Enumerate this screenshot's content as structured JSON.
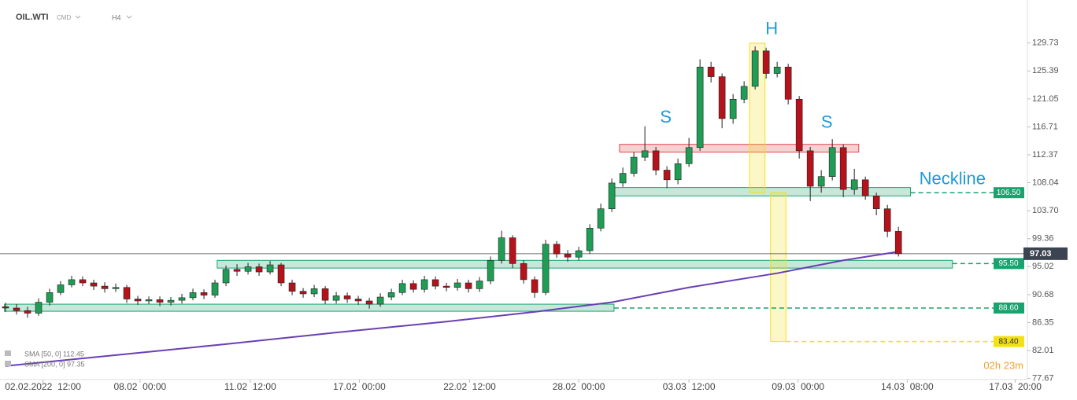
{
  "header": {
    "symbol": "OIL.WTI",
    "market": "CMD",
    "interval": "H4"
  },
  "chart_data": {
    "type": "candlestick",
    "open": [
      88.8,
      88.6,
      88.2,
      87.8,
      89.5,
      91.0,
      92.2,
      93.0,
      92.5,
      92.0,
      91.6,
      91.8,
      90.0,
      89.7,
      89.9,
      89.5,
      89.8,
      90.2,
      91.0,
      90.6,
      92.5,
      94.6,
      94.3,
      95.0,
      94.2,
      95.3,
      92.5,
      91.2,
      90.8,
      91.6,
      89.8,
      90.5,
      90.0,
      89.7,
      89.2,
      90.3,
      91.0,
      92.4,
      91.5,
      93.0,
      92.0,
      91.8,
      92.5,
      91.6,
      92.8,
      96.0,
      99.5,
      95.5,
      93.0,
      91.0,
      98.5,
      97.0,
      96.5,
      97.5,
      101.0,
      104.0,
      108.0,
      109.5,
      112.0,
      113.0,
      110.0,
      108.5,
      111.0,
      113.5,
      126.0,
      124.5,
      118.0,
      121.0,
      123.0,
      128.5,
      125.0,
      126.0,
      121.0,
      113.0,
      107.5,
      109.0,
      113.5,
      107.0,
      108.5,
      106.0,
      104.0,
      100.5
    ],
    "high": [
      89.4,
      89.2,
      88.8,
      90.1,
      91.6,
      92.8,
      93.6,
      93.5,
      93.0,
      92.6,
      92.4,
      92.2,
      90.5,
      90.4,
      90.4,
      90.3,
      90.8,
      91.6,
      91.5,
      93.0,
      95.2,
      95.4,
      95.6,
      95.5,
      95.9,
      95.6,
      93.0,
      91.7,
      92.2,
      92.0,
      91.1,
      91.0,
      90.5,
      90.2,
      90.9,
      91.6,
      93.0,
      92.9,
      93.6,
      93.5,
      92.5,
      93.1,
      93.0,
      93.4,
      96.6,
      100.6,
      99.9,
      96.0,
      93.5,
      99.2,
      99.0,
      97.6,
      98.1,
      101.6,
      104.8,
      108.7,
      110.4,
      112.8,
      116.8,
      113.6,
      110.6,
      111.8,
      115.0,
      127.2,
      126.8,
      125.0,
      121.8,
      123.8,
      129.2,
      129.0,
      126.8,
      126.5,
      121.5,
      113.6,
      110.0,
      114.8,
      114.0,
      110.2,
      109.0,
      106.5,
      104.6,
      101.2
    ],
    "low": [
      88.0,
      87.6,
      87.1,
      87.4,
      89.0,
      90.6,
      91.8,
      92.0,
      91.4,
      91.0,
      91.1,
      89.4,
      89.1,
      89.2,
      88.9,
      89.0,
      89.3,
      89.8,
      90.0,
      90.2,
      92.0,
      93.6,
      93.8,
      93.6,
      93.8,
      92.0,
      90.6,
      90.2,
      90.3,
      89.2,
      89.3,
      89.4,
      89.1,
      88.5,
      88.8,
      89.8,
      90.6,
      91.0,
      91.0,
      91.5,
      91.2,
      91.3,
      91.0,
      91.1,
      92.3,
      95.5,
      94.8,
      92.4,
      90.2,
      90.6,
      96.4,
      95.8,
      96.0,
      97.0,
      100.5,
      103.5,
      107.4,
      109.0,
      111.4,
      109.2,
      107.2,
      107.8,
      110.5,
      113.0,
      123.6,
      116.5,
      117.2,
      120.4,
      122.5,
      124.2,
      124.4,
      120.2,
      111.8,
      105.2,
      106.5,
      108.4,
      105.8,
      106.2,
      105.4,
      103.0,
      99.6,
      96.6
    ],
    "close": [
      88.6,
      88.2,
      87.8,
      89.5,
      91.0,
      92.2,
      93.0,
      92.5,
      92.0,
      91.6,
      91.8,
      90.0,
      89.7,
      89.9,
      89.5,
      89.8,
      90.2,
      91.0,
      90.6,
      92.5,
      94.6,
      94.3,
      95.0,
      94.2,
      95.3,
      92.5,
      91.2,
      90.8,
      91.6,
      89.8,
      90.5,
      90.0,
      89.7,
      89.2,
      90.3,
      91.0,
      92.4,
      91.5,
      93.0,
      92.0,
      91.8,
      92.5,
      91.6,
      92.8,
      96.0,
      99.5,
      95.5,
      93.0,
      91.0,
      98.5,
      97.0,
      96.5,
      97.5,
      101.0,
      104.0,
      108.0,
      109.5,
      112.0,
      113.0,
      110.0,
      108.5,
      111.0,
      113.5,
      126.0,
      124.5,
      118.0,
      121.0,
      123.0,
      128.5,
      125.0,
      126.0,
      121.0,
      113.0,
      107.5,
      109.0,
      113.5,
      107.0,
      108.5,
      106.0,
      104.0,
      100.5,
      97.03
    ],
    "up_color": "#1f9d55",
    "down_color": "#b5121b",
    "sma": {
      "color": "#6a3fb5",
      "x": [
        0,
        10,
        20,
        30,
        40,
        48,
        55,
        62,
        70,
        76,
        81
      ],
      "values": [
        79.6,
        81.3,
        83.0,
        84.8,
        86.5,
        88.0,
        89.5,
        91.8,
        94.0,
        96.0,
        97.35
      ]
    },
    "legend": [
      "SMA [50, 0] 112.45",
      "SMA [200, 0] 97.35"
    ],
    "last_price": 97.03,
    "levels": [
      {
        "value": 106.5,
        "label": "106.50",
        "from": 82.1,
        "color": "#1aa36f"
      },
      {
        "value": 95.5,
        "label": "95.50",
        "from": 85.9,
        "color": "#1aa36f"
      },
      {
        "value": 88.6,
        "label": "88.60",
        "from": 55.2,
        "color": "#1aa36f"
      },
      {
        "value": 83.4,
        "label": "83.40",
        "from": 70.8,
        "color": "#f2e01a"
      }
    ],
    "zones": [
      {
        "x": [
          55.7,
          77.4
        ],
        "y": [
          112.8,
          114.0
        ],
        "color": "#e0474c"
      },
      {
        "x": [
          55.1,
          82.1
        ],
        "y": [
          106.0,
          107.3
        ],
        "color": "#1aa36f"
      },
      {
        "x": [
          19.2,
          85.9
        ],
        "y": [
          94.8,
          96.0
        ],
        "color": "#1aa36f"
      },
      {
        "x": [
          -0.1,
          55.2
        ],
        "y": [
          88.1,
          89.2
        ],
        "color": "#1aa36f"
      },
      {
        "x": [
          67.5,
          68.9
        ],
        "y": [
          106.5,
          129.7
        ],
        "color": "#f2e01a"
      },
      {
        "x": [
          69.4,
          70.8
        ],
        "y": [
          83.4,
          106.5
        ],
        "color": "#f2e01a"
      }
    ],
    "annotations": [
      "H",
      "S",
      "S",
      "Neckline"
    ],
    "timer": "02h 23m",
    "ylim": [
      77.5,
      136.4
    ],
    "yticks": [
      129.73,
      125.39,
      121.05,
      116.71,
      112.37,
      108.04,
      {
        "value": 103.7,
        "label": "103.70"
      },
      99.36,
      95.02,
      90.68,
      86.35,
      82.01,
      77.67
    ],
    "xlim": [
      -0.5,
      92.7
    ],
    "xticks": [
      {
        "value": 3.4,
        "label": "02.02.2022  12:00"
      },
      {
        "value": 12.2,
        "label": "08.02  00:00"
      },
      {
        "value": 22.2,
        "label": "11.02  12:00"
      },
      {
        "value": 32.1,
        "label": "17.02  00:00"
      },
      {
        "value": 42.1,
        "label": "22.02  12:00"
      },
      {
        "value": 52,
        "label": "28.02  00:00"
      },
      {
        "value": 62,
        "label": "03.03  12:00"
      },
      {
        "value": 71.9,
        "label": "09.03  00:00"
      },
      {
        "value": 81.8,
        "label": "14.03  08:00"
      },
      {
        "value": 91.6,
        "label": "17.03  20:00"
      }
    ]
  }
}
